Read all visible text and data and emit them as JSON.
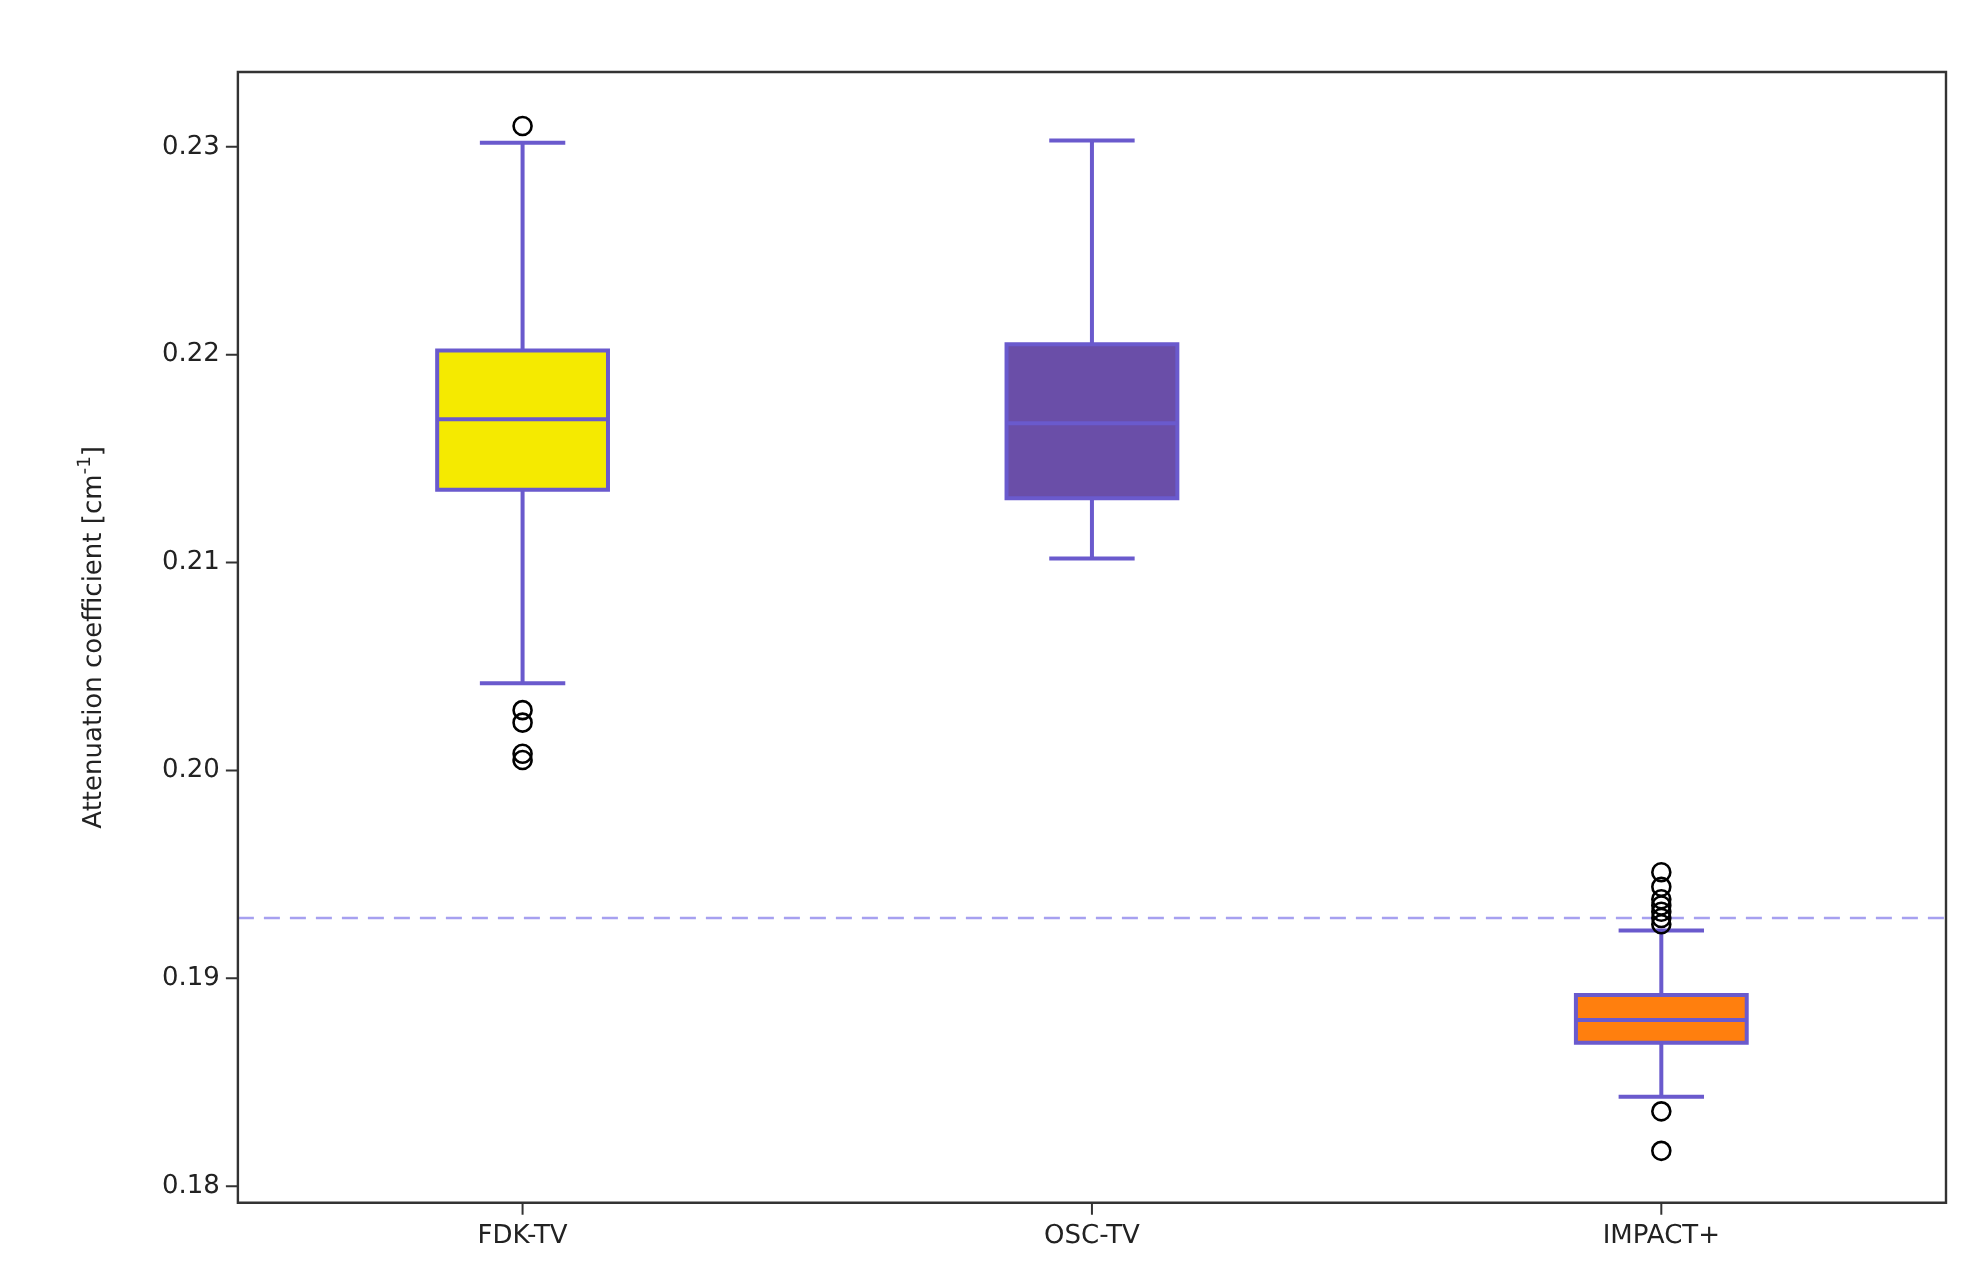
{
  "chart_data": {
    "type": "box",
    "ylabel": "Attenuation coefficient [cm$^{-1}$]",
    "categories": [
      "FDK-TV",
      "OSC-TV",
      "IMPACT+"
    ],
    "series": [
      {
        "color": "#6a5acd",
        "colors": [
          "#f5ea00",
          "#6a4ea8",
          "#ff7f0e"
        ],
        "boxes": [
          {
            "low": 0.2042,
            "q1": 0.2135,
            "median": 0.2169,
            "q3": 0.2202,
            "high": 0.2302,
            "outliers": [
              0.231,
              0.2029,
              0.2023,
              0.2008,
              0.2005
            ]
          },
          {
            "low": 0.2102,
            "q1": 0.2131,
            "median": 0.2167,
            "q3": 0.2205,
            "high": 0.2303
          },
          {
            "low": 0.1843,
            "q1": 0.1869,
            "median": 0.188,
            "q3": 0.1892,
            "high": 0.1923,
            "outliers": [
              0.1836,
              0.1817,
              0.1926,
              0.1929,
              0.1932,
              0.1935,
              0.1938,
              0.1944,
              0.1951
            ]
          }
        ]
      }
    ],
    "ylim": [
      0.1792,
      0.2336
    ],
    "yticks": [
      0.18,
      0.19,
      {
        "value": 0.2,
        "label": "0.20"
      },
      0.21,
      0.22,
      0.23
    ],
    "ref_lines": [
      {
        "axis": "y",
        "value": 0.1929,
        "color": "#a6a0f0",
        "line_style": "dashed"
      }
    ],
    "grid": false,
    "legend": false
  }
}
